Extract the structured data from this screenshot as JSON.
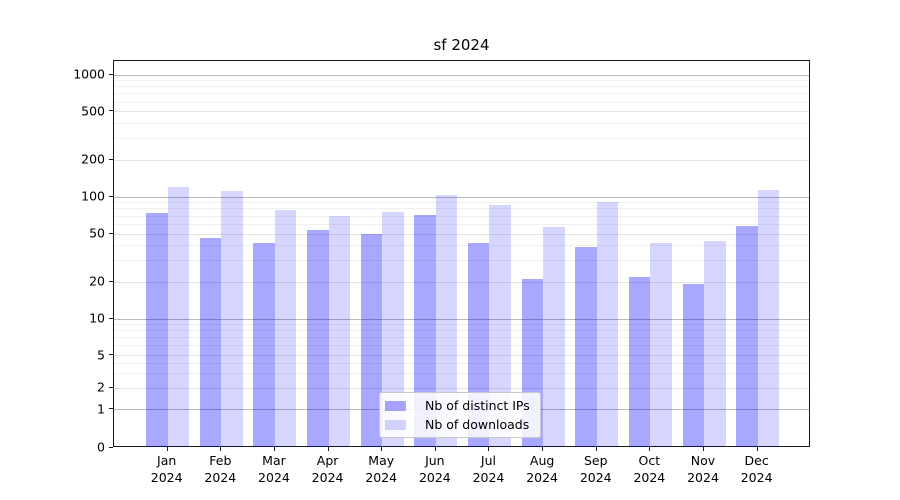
{
  "title": "sf 2024",
  "chart_data": {
    "type": "bar",
    "title": "sf 2024",
    "categories": [
      "Jan",
      "Feb",
      "Mar",
      "Apr",
      "May",
      "Jun",
      "Jul",
      "Aug",
      "Sep",
      "Oct",
      "Nov",
      "Dec"
    ],
    "year_label": "2024",
    "series": [
      {
        "name": "Nb of distinct IPs",
        "color": "rgba(0,0,255,0.34)",
        "values": [
          73,
          46,
          42,
          53,
          50,
          71,
          42,
          21,
          39,
          22,
          19,
          58
        ]
      },
      {
        "name": "Nb of downloads",
        "color": "rgba(0,0,255,0.16)",
        "values": [
          120,
          110,
          78,
          70,
          75,
          103,
          85,
          56,
          90,
          42,
          43,
          112
        ]
      }
    ],
    "yscale": "symlog",
    "yticks": [
      1000,
      500,
      200,
      100,
      50,
      20,
      10,
      5,
      2,
      1,
      0
    ],
    "grid": true,
    "legend_position": "lower center",
    "colors": {
      "bar_distinct_ips": "#aaaaf2",
      "bar_downloads": "#d9d9f8",
      "grid_major": "#b9b9b9",
      "grid_minor": "#f0f0f0"
    }
  }
}
